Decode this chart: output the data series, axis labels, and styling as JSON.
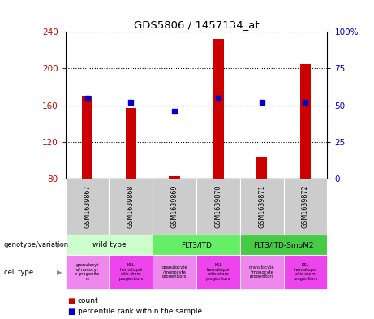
{
  "title": "GDS5806 / 1457134_at",
  "samples": [
    "GSM1639867",
    "GSM1639868",
    "GSM1639869",
    "GSM1639870",
    "GSM1639871",
    "GSM1639872"
  ],
  "counts": [
    170,
    157,
    83,
    232,
    103,
    205
  ],
  "percentiles": [
    55,
    52,
    46,
    55,
    52,
    52
  ],
  "ylim_left": [
    80,
    240
  ],
  "ylim_right": [
    0,
    100
  ],
  "yticks_left": [
    80,
    120,
    160,
    200,
    240
  ],
  "yticks_right": [
    0,
    25,
    50,
    75,
    100
  ],
  "bar_color": "#cc0000",
  "dot_color": "#0000cc",
  "genotype_groups": [
    {
      "label": "wild type",
      "cols": [
        0,
        1
      ],
      "color": "#ccffcc"
    },
    {
      "label": "FLT3/ITD",
      "cols": [
        2,
        3
      ],
      "color": "#66ee66"
    },
    {
      "label": "FLT3/ITD-SmoM2",
      "cols": [
        4,
        5
      ],
      "color": "#44cc44"
    }
  ],
  "cell_type_colors": [
    "#ee88ee",
    "#ee44ee"
  ],
  "cell_type_labels": [
    "granulocyt\ne/monocyt\ne progenito\nrs",
    "KSL\nhematopoi\netic stem\nprogenitors",
    "granulocyte\n/monocyte\nprogenitors",
    "KSL\nhematopoi\netic stem\nprogenitors",
    "granulocyte\n/monocyte\nprogenitors",
    "KSL\nhematopoi\netic stem\nprogenitors"
  ],
  "left_tick_color": "#cc0000",
  "right_tick_color": "#0000cc",
  "sample_box_color": "#cccccc",
  "bar_width": 0.25
}
